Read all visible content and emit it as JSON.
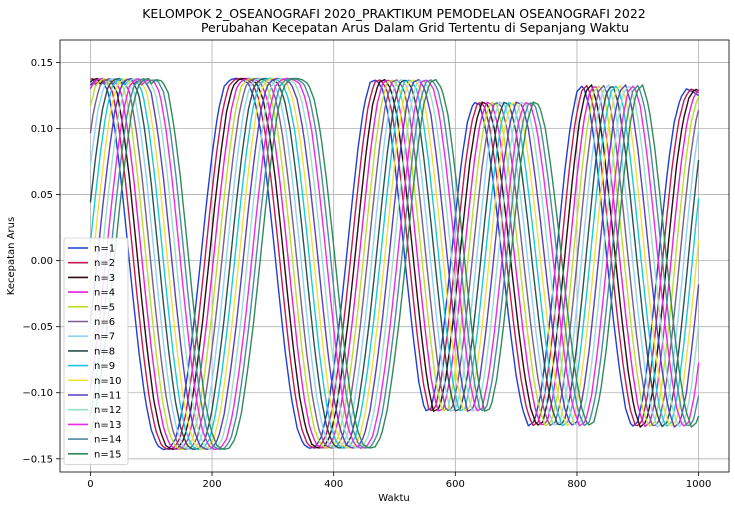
{
  "chart_data": {
    "type": "line",
    "title": [
      "KELOMPOK 2_OSEANOGRAFI 2020_PRAKTIKUM PEMODELAN OSEANOGRAFI 2022",
      "Perubahan Kecepatan Arus Dalam Grid Tertentu di Sepanjang Waktu"
    ],
    "xlabel": "Waktu",
    "ylabel": "Kecepatan Arus",
    "xlim": [
      -50,
      1050
    ],
    "ylim": [
      -0.16,
      0.167
    ],
    "xticks": [
      0,
      200,
      400,
      600,
      800,
      1000
    ],
    "yticks": [
      -0.15,
      -0.1,
      -0.05,
      0.0,
      0.05,
      0.1,
      0.15
    ],
    "xtick_labels": [
      "0",
      "200",
      "400",
      "600",
      "800",
      "1000"
    ],
    "ytick_labels": [
      "−0.15",
      "−0.10",
      "−0.05",
      "0.00",
      "0.05",
      "0.10",
      "0.15"
    ],
    "grid": true,
    "legend_position": "center-left",
    "sample_step": 10,
    "series": [
      {
        "name": "n=1",
        "color": "#1f3fd1"
      },
      {
        "name": "n=2",
        "color": "#c21a55"
      },
      {
        "name": "n=3",
        "color": "#2a0f10"
      },
      {
        "name": "n=4",
        "color": "#e61fd8"
      },
      {
        "name": "n=5",
        "color": "#b7e02c"
      },
      {
        "name": "n=6",
        "color": "#7a5e8a"
      },
      {
        "name": "n=7",
        "color": "#8fd3f5"
      },
      {
        "name": "n=8",
        "color": "#2f4f4f"
      },
      {
        "name": "n=9",
        "color": "#18c9de"
      },
      {
        "name": "n=10",
        "color": "#f2de3a"
      },
      {
        "name": "n=11",
        "color": "#5a3fc0"
      },
      {
        "name": "n=12",
        "color": "#96e0c8"
      },
      {
        "name": "n=13",
        "color": "#f02ae0"
      },
      {
        "name": "n=14",
        "color": "#4c8a9e"
      },
      {
        "name": "n=15",
        "color": "#2e8b57"
      }
    ],
    "base_curve": {
      "x": [
        0,
        10,
        20,
        30,
        40,
        50,
        60,
        70,
        80,
        90,
        100,
        110,
        120,
        130,
        140,
        150,
        160,
        170,
        180,
        190,
        200,
        210,
        220,
        230,
        240,
        250,
        260,
        270,
        280,
        290,
        300,
        310,
        320,
        330,
        340,
        350,
        360,
        370,
        380,
        390,
        400,
        410,
        420,
        430,
        440,
        450,
        460,
        470,
        480,
        490,
        500,
        510,
        520,
        530,
        540,
        550,
        560,
        570,
        580,
        590,
        600,
        610,
        620,
        630,
        640,
        650,
        660,
        670,
        680,
        690,
        700,
        710,
        720,
        730,
        740,
        750,
        760,
        770,
        780,
        790,
        800,
        810,
        820,
        830,
        840,
        850,
        860,
        870,
        880,
        890,
        900,
        910,
        920,
        930,
        940,
        950,
        960,
        970,
        980,
        990,
        1000
      ],
      "y": [
        0.133,
        0.137,
        0.136,
        0.127,
        0.1,
        0.063,
        0.018,
        -0.028,
        -0.07,
        -0.105,
        -0.128,
        -0.14,
        -0.143,
        -0.142,
        -0.135,
        -0.116,
        -0.085,
        -0.048,
        -0.005,
        0.04,
        0.08,
        0.113,
        0.132,
        0.137,
        0.138,
        0.137,
        0.134,
        0.122,
        0.098,
        0.062,
        0.02,
        -0.025,
        -0.068,
        -0.103,
        -0.127,
        -0.139,
        -0.142,
        -0.141,
        -0.133,
        -0.113,
        -0.082,
        -0.045,
        -0.002,
        0.043,
        0.085,
        0.118,
        0.135,
        0.137,
        0.13,
        0.11,
        0.075,
        0.033,
        -0.012,
        -0.055,
        -0.092,
        -0.114,
        -0.112,
        -0.09,
        -0.055,
        -0.012,
        0.033,
        0.075,
        0.105,
        0.12,
        0.118,
        0.1,
        0.068,
        0.03,
        -0.012,
        -0.052,
        -0.087,
        -0.112,
        -0.125,
        -0.122,
        -0.102,
        -0.068,
        -0.025,
        0.022,
        0.068,
        0.105,
        0.128,
        0.133,
        0.117,
        0.085,
        0.043,
        -0.002,
        -0.045,
        -0.083,
        -0.112,
        -0.126,
        -0.122,
        -0.1,
        -0.062,
        -0.018,
        0.03,
        0.073,
        0.105,
        0.123,
        0.13,
        0.128,
        0.125
      ]
    },
    "lag_per_series": 7
  }
}
